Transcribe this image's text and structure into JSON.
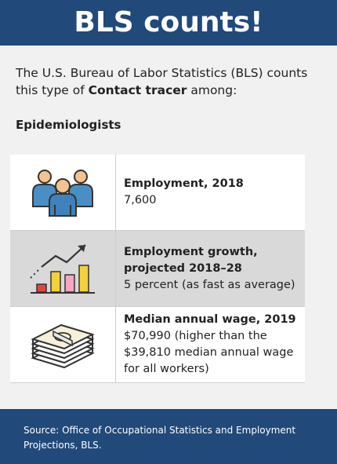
{
  "header": {
    "title": "BLS counts!"
  },
  "intro": {
    "text_before": "The U.S. Bureau of Labor Statistics (BLS) counts this type of ",
    "emphasis": "Contact tracer",
    "text_after": " among:"
  },
  "occupation": "Epidemiologists",
  "rows": [
    {
      "label": "Employment, 2018",
      "value": "7,600",
      "icon": "people-icon"
    },
    {
      "label": "Employment growth, projected 2018–28",
      "value": "5 percent (as fast as average)",
      "icon": "growth-chart-icon"
    },
    {
      "label": "Median annual wage, 2019",
      "value": "$70,990 (higher than the $39,810 median annual wage for all workers)",
      "icon": "money-stack-icon"
    }
  ],
  "footer": {
    "source": "Source: Office of Occupational Statistics and Employment Projections, BLS."
  },
  "colors": {
    "header_bg": "#21497a",
    "row_grey": "#d9d9d9",
    "people_blue": "#4a8fc4",
    "bar_red": "#e0473c",
    "bar_pink": "#f4a6c2",
    "bar_yellow": "#f2d13b"
  }
}
